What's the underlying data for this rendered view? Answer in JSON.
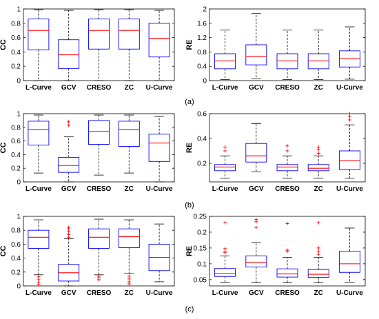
{
  "panel_labels": [
    "(a)",
    "(b)",
    "(c)"
  ],
  "colors": {
    "box": "#0000ff",
    "median": "#ff0000",
    "whisker": "#000000",
    "outlier": "#ff0000"
  },
  "chart_data": [
    {
      "type": "box",
      "panel": "(a)",
      "ylabel": "CC",
      "ylim": [
        0,
        1
      ],
      "yticks": [
        0,
        0.2,
        0.4,
        0.6,
        0.8,
        1
      ],
      "ytick_labels": [
        "0",
        "0.2",
        "0.4",
        "0.6",
        "0.8",
        "1"
      ],
      "categories": [
        "L-Curve",
        "GCV",
        "CRESO",
        "ZC",
        "U-Curve"
      ],
      "boxes": [
        {
          "min": 0.0,
          "q1": 0.43,
          "median": 0.7,
          "q3": 0.86,
          "max": 0.99,
          "outliers": []
        },
        {
          "min": 0.0,
          "q1": 0.17,
          "median": 0.36,
          "q3": 0.57,
          "max": 0.98,
          "outliers": []
        },
        {
          "min": 0.0,
          "q1": 0.44,
          "median": 0.7,
          "q3": 0.86,
          "max": 0.99,
          "outliers": []
        },
        {
          "min": 0.0,
          "q1": 0.44,
          "median": 0.7,
          "q3": 0.86,
          "max": 0.99,
          "outliers": []
        },
        {
          "min": 0.0,
          "q1": 0.33,
          "median": 0.59,
          "q3": 0.8,
          "max": 0.98,
          "outliers": []
        }
      ]
    },
    {
      "type": "box",
      "panel": "(a)",
      "ylabel": "RE",
      "ylim": [
        0,
        2
      ],
      "yticks": [
        0,
        0.4,
        0.8,
        1.2,
        1.6,
        2
      ],
      "ytick_labels": [
        "0",
        "0.4",
        "0.8",
        "1.2",
        "1.6",
        "2"
      ],
      "categories": [
        "L-Curve",
        "GCV",
        "CRESO",
        "ZC",
        "U-Curve"
      ],
      "boxes": [
        {
          "min": 0.03,
          "q1": 0.33,
          "median": 0.55,
          "q3": 0.75,
          "max": 1.41,
          "outliers": []
        },
        {
          "min": 0.05,
          "q1": 0.44,
          "median": 0.68,
          "q3": 1.0,
          "max": 1.87,
          "outliers": []
        },
        {
          "min": 0.03,
          "q1": 0.33,
          "median": 0.55,
          "q3": 0.75,
          "max": 1.41,
          "outliers": []
        },
        {
          "min": 0.03,
          "q1": 0.33,
          "median": 0.55,
          "q3": 0.75,
          "max": 1.41,
          "outliers": []
        },
        {
          "min": 0.04,
          "q1": 0.38,
          "median": 0.61,
          "q3": 0.83,
          "max": 1.5,
          "outliers": []
        }
      ]
    },
    {
      "type": "box",
      "panel": "(b)",
      "ylabel": "CC",
      "ylim": [
        0,
        1
      ],
      "yticks": [
        0,
        0.2,
        0.4,
        0.6,
        0.8,
        1
      ],
      "ytick_labels": [
        "0",
        "0.2",
        "0.4",
        "0.6",
        "0.8",
        "1"
      ],
      "categories": [
        "L-Curve",
        "GCV",
        "CRESO",
        "ZC",
        "U-Curve"
      ],
      "boxes": [
        {
          "min": 0.13,
          "q1": 0.54,
          "median": 0.77,
          "q3": 0.89,
          "max": 0.98,
          "outliers": []
        },
        {
          "min": 0.0,
          "q1": 0.14,
          "median": 0.24,
          "q3": 0.36,
          "max": 0.66,
          "outliers": [
            0.83,
            0.88
          ]
        },
        {
          "min": 0.1,
          "q1": 0.55,
          "median": 0.74,
          "q3": 0.9,
          "max": 0.98,
          "outliers": []
        },
        {
          "min": 0.13,
          "q1": 0.52,
          "median": 0.77,
          "q3": 0.89,
          "max": 0.98,
          "outliers": []
        },
        {
          "min": 0.0,
          "q1": 0.3,
          "median": 0.57,
          "q3": 0.7,
          "max": 0.96,
          "outliers": []
        }
      ]
    },
    {
      "type": "box",
      "panel": "(b)",
      "ylabel": "RE",
      "ylim": [
        0.05,
        0.6
      ],
      "yticks": [
        0.2,
        0.4,
        0.6
      ],
      "ytick_labels": [
        "0.2",
        "0.4",
        "0.6"
      ],
      "categories": [
        "L-Curve",
        "GCV",
        "CRESO",
        "ZC",
        "U-Curve"
      ],
      "boxes": [
        {
          "min": 0.08,
          "q1": 0.14,
          "median": 0.17,
          "q3": 0.19,
          "max": 0.26,
          "outliers": [
            0.3,
            0.33
          ]
        },
        {
          "min": 0.13,
          "q1": 0.21,
          "median": 0.26,
          "q3": 0.36,
          "max": 0.52,
          "outliers": []
        },
        {
          "min": 0.08,
          "q1": 0.14,
          "median": 0.17,
          "q3": 0.19,
          "max": 0.26,
          "outliers": [
            0.3,
            0.34
          ]
        },
        {
          "min": 0.08,
          "q1": 0.14,
          "median": 0.16,
          "q3": 0.19,
          "max": 0.26,
          "outliers": [
            0.28,
            0.31,
            0.33
          ]
        },
        {
          "min": 0.08,
          "q1": 0.15,
          "median": 0.22,
          "q3": 0.3,
          "max": 0.51,
          "outliers": [
            0.55,
            0.58,
            0.6
          ]
        }
      ]
    },
    {
      "type": "box",
      "panel": "(c)",
      "ylabel": "CC",
      "ylim": [
        0,
        1
      ],
      "yticks": [
        0,
        0.2,
        0.4,
        0.6,
        0.8,
        1
      ],
      "ytick_labels": [
        "0",
        "0.2",
        "0.4",
        "0.6",
        "0.8",
        "1"
      ],
      "categories": [
        "L-Curve",
        "GCV",
        "CRESO",
        "ZC",
        "U-Curve"
      ],
      "boxes": [
        {
          "min": 0.16,
          "q1": 0.54,
          "median": 0.7,
          "q3": 0.8,
          "max": 0.95,
          "outliers": [
            0.02,
            0.05,
            0.09,
            0.13
          ]
        },
        {
          "min": 0.0,
          "q1": 0.07,
          "median": 0.19,
          "q3": 0.31,
          "max": 0.68,
          "outliers": [
            0.7,
            0.74,
            0.78,
            0.82,
            0.84
          ]
        },
        {
          "min": 0.16,
          "q1": 0.54,
          "median": 0.7,
          "q3": 0.82,
          "max": 0.96,
          "outliers": [
            0.09,
            0.12,
            0.14
          ]
        },
        {
          "min": 0.18,
          "q1": 0.55,
          "median": 0.71,
          "q3": 0.82,
          "max": 0.95,
          "outliers": [
            0.03,
            0.06,
            0.1,
            0.14
          ]
        },
        {
          "min": 0.06,
          "q1": 0.22,
          "median": 0.41,
          "q3": 0.6,
          "max": 0.89,
          "outliers": []
        }
      ]
    },
    {
      "type": "box",
      "panel": "(c)",
      "ylabel": "RE",
      "ylim": [
        0.03,
        0.25
      ],
      "yticks": [
        0.05,
        0.1,
        0.15,
        0.2,
        0.25
      ],
      "ytick_labels": [
        "0.05",
        "0.1",
        "0.15",
        "0.2",
        "0.25"
      ],
      "categories": [
        "L-Curve",
        "GCV",
        "CRESO",
        "ZC",
        "U-Curve"
      ],
      "boxes": [
        {
          "min": 0.04,
          "q1": 0.06,
          "median": 0.07,
          "q3": 0.085,
          "max": 0.125,
          "outliers": [
            0.135,
            0.14,
            0.148,
            0.23
          ]
        },
        {
          "min": 0.04,
          "q1": 0.09,
          "median": 0.105,
          "q3": 0.125,
          "max": 0.167,
          "outliers": [
            0.215,
            0.233,
            0.24
          ]
        },
        {
          "min": 0.04,
          "q1": 0.058,
          "median": 0.068,
          "q3": 0.084,
          "max": 0.12,
          "outliers": [
            0.14,
            0.143,
            0.227
          ]
        },
        {
          "min": 0.04,
          "q1": 0.057,
          "median": 0.067,
          "q3": 0.082,
          "max": 0.12,
          "outliers": [
            0.13,
            0.14,
            0.15,
            0.23
          ]
        },
        {
          "min": 0.04,
          "q1": 0.073,
          "median": 0.1,
          "q3": 0.14,
          "max": 0.213,
          "outliers": []
        }
      ]
    }
  ]
}
